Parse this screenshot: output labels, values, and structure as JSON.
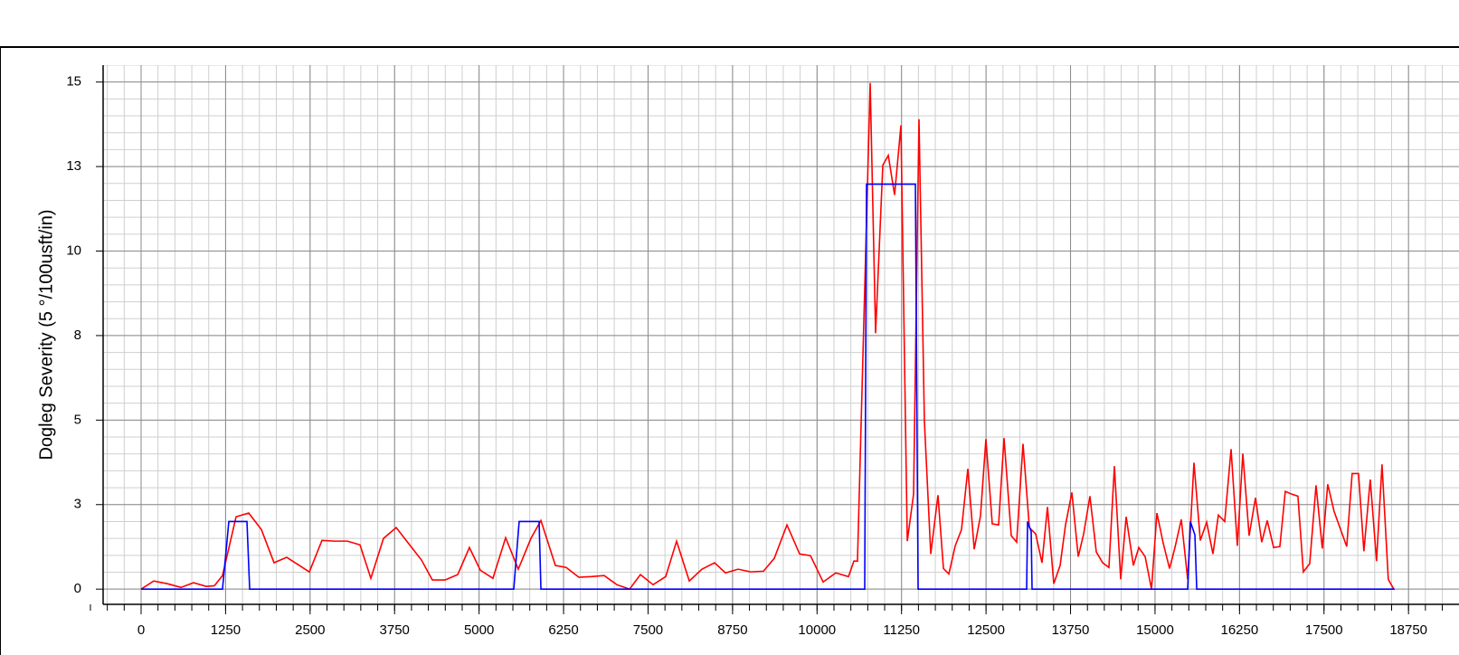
{
  "chart_data": {
    "type": "line",
    "y_label": "Dogleg Severity (5 °/100usft/in)",
    "xlim": [
      -562,
      19497
    ],
    "ylim": [
      -0.45,
      15.5
    ],
    "xticks": [
      0,
      1250,
      2500,
      3750,
      5000,
      6250,
      7500,
      8750,
      10000,
      11250,
      12500,
      13750,
      15000,
      16250,
      17500,
      18750
    ],
    "yticks": [
      0,
      {
        "value": 2.5,
        "label": "3"
      },
      {
        "value": 5,
        "label": "5"
      },
      {
        "value": 7.5,
        "label": "8"
      },
      {
        "value": 10,
        "label": "10"
      },
      {
        "value": 12.5,
        "label": "13"
      },
      {
        "value": 15,
        "label": "15"
      }
    ],
    "grid": true,
    "series": [
      {
        "color": "#ff0000",
        "x": [
          0,
          187,
          388,
          589,
          776,
          963,
          1084,
          1204,
          1405,
          1592,
          1780,
          1967,
          2154,
          2342,
          2489,
          2676,
          2864,
          3051,
          3238,
          3399,
          3586,
          3774,
          3961,
          4148,
          4309,
          4496,
          4684,
          4857,
          5018,
          5205,
          5393,
          5580,
          5767,
          5915,
          6129,
          6289,
          6477,
          6664,
          6851,
          7039,
          7226,
          7387,
          7574,
          7761,
          7922,
          8110,
          8297,
          8484,
          8645,
          8832,
          9019,
          9207,
          9367,
          9555,
          9742,
          9903,
          10090,
          10277,
          10465,
          10545,
          10598,
          10786,
          10866,
          10973,
          11054,
          11147,
          11241,
          11335,
          11428,
          11508,
          11588,
          11682,
          11789,
          11870,
          11950,
          12044,
          12137,
          12231,
          12325,
          12418,
          12498,
          12592,
          12686,
          12766,
          12873,
          12953,
          13047,
          13141,
          13235,
          13328,
          13409,
          13502,
          13596,
          13676,
          13770,
          13864,
          13944,
          14037,
          14131,
          14225,
          14318,
          14399,
          14492,
          14573,
          14680,
          14760,
          14854,
          14948,
          15028,
          15121,
          15215,
          15295,
          15389,
          15483,
          15576,
          15670,
          15764,
          15857,
          15937,
          16031,
          16125,
          16218,
          16299,
          16392,
          16486,
          16579,
          16660,
          16754,
          16847,
          16927,
          17021,
          17114,
          17194,
          17288,
          17382,
          17475,
          17555,
          17649,
          17836,
          17916,
          18010,
          18090,
          18184,
          18277,
          18358,
          18451,
          18532
        ],
        "values": [
          0,
          0.24,
          0.16,
          0.05,
          0.19,
          0.08,
          0.1,
          0.4,
          2.14,
          2.25,
          1.76,
          0.78,
          0.94,
          0.7,
          0.51,
          1.44,
          1.42,
          1.42,
          1.31,
          0.32,
          1.5,
          1.82,
          1.34,
          0.86,
          0.27,
          0.27,
          0.43,
          1.23,
          0.56,
          0.32,
          1.52,
          0.59,
          1.5,
          2.03,
          0.7,
          0.64,
          0.35,
          0.37,
          0.4,
          0.13,
          0,
          0.43,
          0.13,
          0.37,
          1.42,
          0.24,
          0.59,
          0.78,
          0.48,
          0.59,
          0.51,
          0.53,
          0.91,
          1.9,
          1.04,
          0.99,
          0.21,
          0.48,
          0.37,
          0.83,
          0.83,
          14.97,
          7.57,
          12.54,
          12.83,
          11.66,
          13.72,
          1.42,
          2.81,
          13.9,
          4.97,
          1.04,
          2.78,
          0.61,
          0.45,
          1.28,
          1.76,
          3.56,
          1.18,
          2.17,
          4.44,
          1.93,
          1.9,
          4.47,
          1.58,
          1.39,
          4.3,
          1.82,
          1.63,
          0.78,
          2.43,
          0.16,
          0.7,
          1.9,
          2.86,
          0.96,
          1.63,
          2.75,
          1.1,
          0.78,
          0.64,
          3.64,
          0.29,
          2.14,
          0.7,
          1.23,
          0.96,
          0,
          2.25,
          1.36,
          0.61,
          1.23,
          2.06,
          0.29,
          3.74,
          1.44,
          1.98,
          1.04,
          2.19,
          2.0,
          4.14,
          1.28,
          4.01,
          1.58,
          2.7,
          1.39,
          2.03,
          1.23,
          1.26,
          2.89,
          2.81,
          2.75,
          0.51,
          0.75,
          3.07,
          1.2,
          3.1,
          2.3,
          1.26,
          3.42,
          3.42,
          1.12,
          3.24,
          0.83,
          3.69,
          0.29,
          0
        ]
      },
      {
        "color": "#0000ff",
        "x": [
          0,
          1204,
          1298,
          1566,
          1606,
          5513,
          5593,
          5888,
          5915,
          10705,
          10732,
          11455,
          11495,
          13101,
          13114,
          13168,
          13181,
          15483,
          15523,
          15590,
          15617,
          18545
        ],
        "values": [
          0,
          0,
          2.0,
          2.0,
          0,
          0,
          2.0,
          2.0,
          0,
          0,
          11.98,
          11.98,
          0,
          0,
          2.0,
          1.7,
          0,
          0,
          2.0,
          1.6,
          0,
          0
        ]
      }
    ]
  }
}
